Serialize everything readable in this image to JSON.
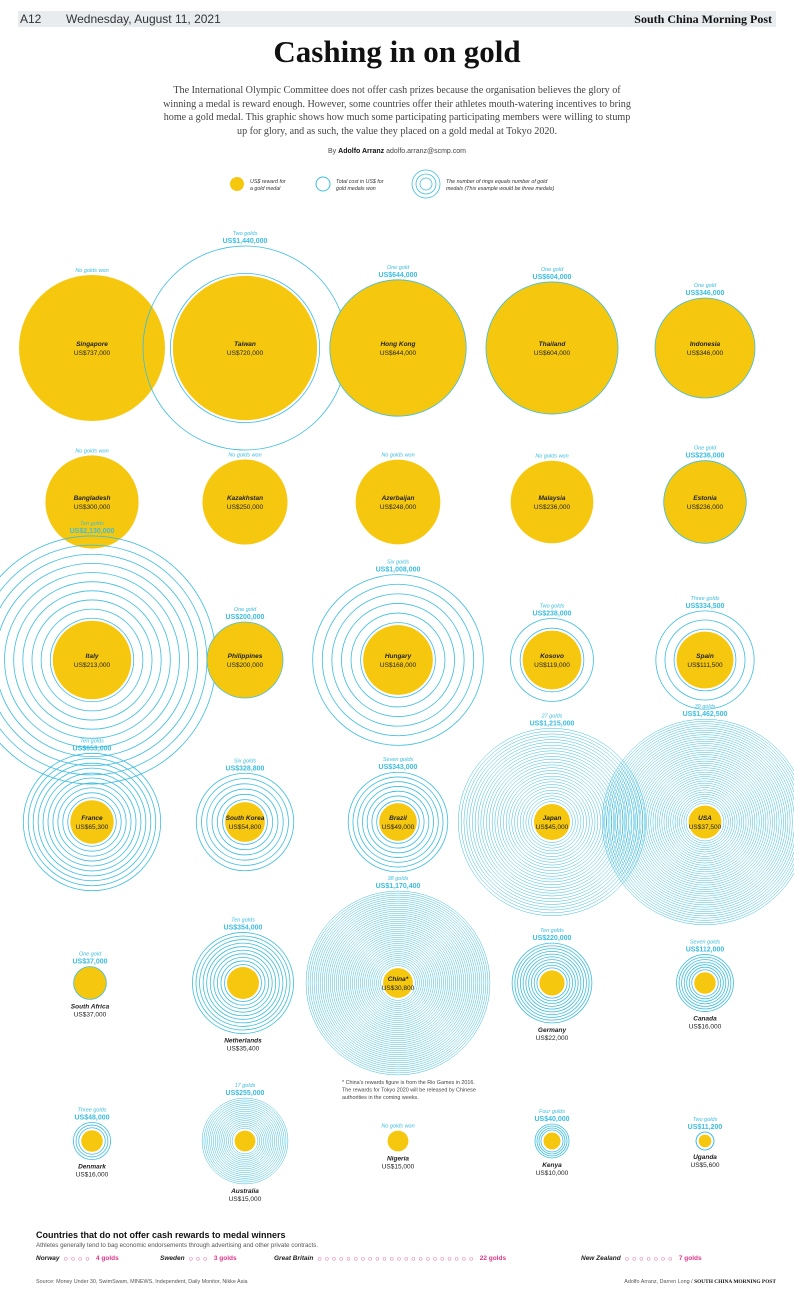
{
  "header": {
    "page": "A12",
    "date": "Wednesday, August 11, 2021",
    "brand": "South China Morning Post"
  },
  "title": "Cashing in on gold",
  "intro": "The International Olympic Committee does not offer cash prizes because the organisation believes the glory of winning a medal is reward enough. However, some countries offer their athletes mouth-watering incentives to bring home a gold medal. This graphic shows how much some participating participating members were willing to stump up for glory, and as such, the value they placed on a gold medal at Tokyo 2020.",
  "byline": {
    "prefix": "By",
    "author": "Adolfo Arranz",
    "email": "adolfo.arranz@scmp.com"
  },
  "colors": {
    "gold": "#f5c80f",
    "ring": "#3bbde0",
    "ring_label": "#3bbde0",
    "pink": "#e0338a"
  },
  "legend": {
    "reward": "US$ reward for a gold medal",
    "total": "Total cost in US$ for gold medals won",
    "rings": "The number of rings equals number of gold medals (This example would be three medals)"
  },
  "chart_data": {
    "type": "bubble",
    "unit": "US$",
    "countries": [
      {
        "name": "Singapore",
        "reward_label": "US$737,000",
        "reward": 737000,
        "golds": 0,
        "golds_label": "No golds won",
        "total_label": "",
        "total": 0
      },
      {
        "name": "Taiwan",
        "reward_label": "US$720,000",
        "reward": 720000,
        "golds": 2,
        "golds_label": "Two golds",
        "total_label": "US$1,440,000",
        "total": 1440000
      },
      {
        "name": "Hong Kong",
        "reward_label": "US$644,000",
        "reward": 644000,
        "golds": 1,
        "golds_label": "One gold",
        "total_label": "US$644,000",
        "total": 644000
      },
      {
        "name": "Thailand",
        "reward_label": "US$604,000",
        "reward": 604000,
        "golds": 1,
        "golds_label": "One gold",
        "total_label": "US$604,000",
        "total": 604000
      },
      {
        "name": "Indonesia",
        "reward_label": "US$346,000",
        "reward": 346000,
        "golds": 1,
        "golds_label": "One gold",
        "total_label": "US$346,000",
        "total": 346000
      },
      {
        "name": "Bangladesh",
        "reward_label": "US$300,000",
        "reward": 300000,
        "golds": 0,
        "golds_label": "No golds won",
        "total_label": "",
        "total": 0
      },
      {
        "name": "Kazakhstan",
        "reward_label": "US$250,000",
        "reward": 250000,
        "golds": 0,
        "golds_label": "No golds won",
        "total_label": "",
        "total": 0
      },
      {
        "name": "Azerbaijan",
        "reward_label": "US$248,000",
        "reward": 248000,
        "golds": 0,
        "golds_label": "No golds won",
        "total_label": "",
        "total": 0
      },
      {
        "name": "Malaysia",
        "reward_label": "US$236,000",
        "reward": 236000,
        "golds": 0,
        "golds_label": "No golds won",
        "total_label": "",
        "total": 0
      },
      {
        "name": "Estonia",
        "reward_label": "US$236,000",
        "reward": 236000,
        "golds": 1,
        "golds_label": "One gold",
        "total_label": "US$236,000",
        "total": 236000
      },
      {
        "name": "Italy",
        "reward_label": "US$213,000",
        "reward": 213000,
        "golds": 10,
        "golds_label": "Ten golds",
        "total_label": "US$2,130,000",
        "total": 2130000
      },
      {
        "name": "Philippines",
        "reward_label": "US$200,000",
        "reward": 200000,
        "golds": 1,
        "golds_label": "One gold",
        "total_label": "US$200,000",
        "total": 200000
      },
      {
        "name": "Hungary",
        "reward_label": "US$168,000",
        "reward": 168000,
        "golds": 6,
        "golds_label": "Six golds",
        "total_label": "US$1,008,000",
        "total": 1008000
      },
      {
        "name": "Kosovo",
        "reward_label": "US$119,000",
        "reward": 119000,
        "golds": 2,
        "golds_label": "Two golds",
        "total_label": "US$238,000",
        "total": 238000
      },
      {
        "name": "Spain",
        "reward_label": "US$111,500",
        "reward": 111500,
        "golds": 3,
        "golds_label": "Three golds",
        "total_label": "US$334,500",
        "total": 334500
      },
      {
        "name": "France",
        "reward_label": "US$65,300",
        "reward": 65300,
        "golds": 10,
        "golds_label": "Ten golds",
        "total_label": "US$653,000",
        "total": 653000
      },
      {
        "name": "South Korea",
        "reward_label": "US$54,800",
        "reward": 54800,
        "golds": 6,
        "golds_label": "Six golds",
        "total_label": "US$328,800",
        "total": 328800
      },
      {
        "name": "Brazil",
        "reward_label": "US$49,000",
        "reward": 49000,
        "golds": 7,
        "golds_label": "Seven golds",
        "total_label": "US$343,000",
        "total": 343000
      },
      {
        "name": "Japan",
        "reward_label": "US$45,000",
        "reward": 45000,
        "golds": 27,
        "golds_label": "27 golds",
        "total_label": "US$1,215,000",
        "total": 1215000
      },
      {
        "name": "USA",
        "reward_label": "US$37,500",
        "reward": 37500,
        "golds": 39,
        "golds_label": "39 golds",
        "total_label": "US$1,462,500",
        "total": 1462500
      },
      {
        "name": "South Africa",
        "reward_label": "US$37,000",
        "reward": 37000,
        "golds": 1,
        "golds_label": "One gold",
        "total_label": "US$37,000",
        "total": 37000
      },
      {
        "name": "Netherlands",
        "reward_label": "US$35,400",
        "reward": 35400,
        "golds": 10,
        "golds_label": "Ten golds",
        "total_label": "US$354,000",
        "total": 354000
      },
      {
        "name": "China*",
        "reward_label": "US$30,800",
        "reward": 30800,
        "golds": 38,
        "golds_label": "38 golds",
        "total_label": "US$1,170,400",
        "total": 1170400
      },
      {
        "name": "Germany",
        "reward_label": "US$22,000",
        "reward": 22000,
        "golds": 10,
        "golds_label": "Ten golds",
        "total_label": "US$220,000",
        "total": 220000
      },
      {
        "name": "Canada",
        "reward_label": "US$16,000",
        "reward": 16000,
        "golds": 7,
        "golds_label": "Seven golds",
        "total_label": "US$112,000",
        "total": 112000
      },
      {
        "name": "Denmark",
        "reward_label": "US$16,000",
        "reward": 16000,
        "golds": 3,
        "golds_label": "Three golds",
        "total_label": "US$48,000",
        "total": 48000
      },
      {
        "name": "Australia",
        "reward_label": "US$15,000",
        "reward": 15000,
        "golds": 17,
        "golds_label": "17 golds",
        "total_label": "US$255,000",
        "total": 255000
      },
      {
        "name": "Nigeria",
        "reward_label": "US$15,000",
        "reward": 15000,
        "golds": 0,
        "golds_label": "No golds won",
        "total_label": "",
        "total": 0
      },
      {
        "name": "Kenya",
        "reward_label": "US$10,000",
        "reward": 10000,
        "golds": 4,
        "golds_label": "Four golds",
        "total_label": "US$40,000",
        "total": 40000
      },
      {
        "name": "Uganda",
        "reward_label": "US$5,600",
        "reward": 5600,
        "golds": 2,
        "golds_label": "Two golds",
        "total_label": "US$11,200",
        "total": 11200
      }
    ],
    "china_note": "* China's rewards figure is from the Rio Games in 2016. The rewards for Tokyo 2020 will be released by Chinese authorities in the coming weeks."
  },
  "no_cash": {
    "title": "Countries that do not offer cash rewards to medal winners",
    "subtitle": "Athletes generally tend to bag economic endorsements through advertising and other private contracts.",
    "items": [
      {
        "country": "Norway",
        "golds": 4,
        "label": "4 golds"
      },
      {
        "country": "Sweden",
        "golds": 3,
        "label": "3 golds"
      },
      {
        "country": "Great Britain",
        "golds": 22,
        "label": "22 golds"
      },
      {
        "country": "New Zealand",
        "golds": 7,
        "label": "7 golds"
      }
    ]
  },
  "footer": {
    "source": "Source: Money Under 30, SwimSwam, MINEWS, Independent, Daily Monitor, Nikke Asia",
    "credit": "Adolfo Arranz, Darren Long /",
    "brand": "SOUTH CHINA MORNING POST"
  }
}
